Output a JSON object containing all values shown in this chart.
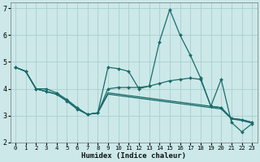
{
  "xlabel": "Humidex (Indice chaleur)",
  "xlim": [
    -0.5,
    23.5
  ],
  "ylim": [
    2,
    7.2
  ],
  "yticks": [
    2,
    3,
    4,
    5,
    6,
    7
  ],
  "xticks": [
    0,
    1,
    2,
    3,
    4,
    5,
    6,
    7,
    8,
    9,
    10,
    11,
    12,
    13,
    14,
    15,
    16,
    17,
    18,
    19,
    20,
    21,
    22,
    23
  ],
  "bg_color": "#cce8e8",
  "grid_color": "#aacece",
  "line_color": "#1a6b6b",
  "line1_y": [
    4.8,
    4.65,
    4.0,
    4.0,
    3.85,
    3.6,
    3.3,
    3.05,
    3.1,
    4.8,
    4.75,
    4.65,
    4.0,
    4.1,
    5.75,
    6.95,
    6.0,
    5.25,
    4.4,
    3.35,
    4.35,
    2.75,
    2.4,
    2.7
  ],
  "line2_y": [
    4.8,
    4.65,
    4.0,
    3.9,
    3.8,
    3.55,
    3.25,
    3.05,
    3.1,
    4.0,
    4.05,
    4.05,
    4.05,
    4.1,
    4.2,
    4.3,
    4.35,
    4.4,
    4.35,
    3.35,
    3.3,
    2.9,
    2.85,
    2.75
  ],
  "line3_y": [
    4.8,
    4.65,
    4.0,
    3.9,
    3.8,
    3.55,
    3.25,
    3.05,
    3.1,
    3.85,
    3.8,
    3.75,
    3.7,
    3.65,
    3.6,
    3.55,
    3.5,
    3.45,
    3.4,
    3.35,
    3.3,
    2.9,
    2.85,
    2.75
  ],
  "line4_y": [
    4.8,
    4.65,
    4.0,
    3.9,
    3.8,
    3.55,
    3.25,
    3.05,
    3.1,
    3.8,
    3.75,
    3.7,
    3.65,
    3.6,
    3.55,
    3.5,
    3.45,
    3.4,
    3.35,
    3.3,
    3.25,
    2.88,
    2.82,
    2.72
  ]
}
